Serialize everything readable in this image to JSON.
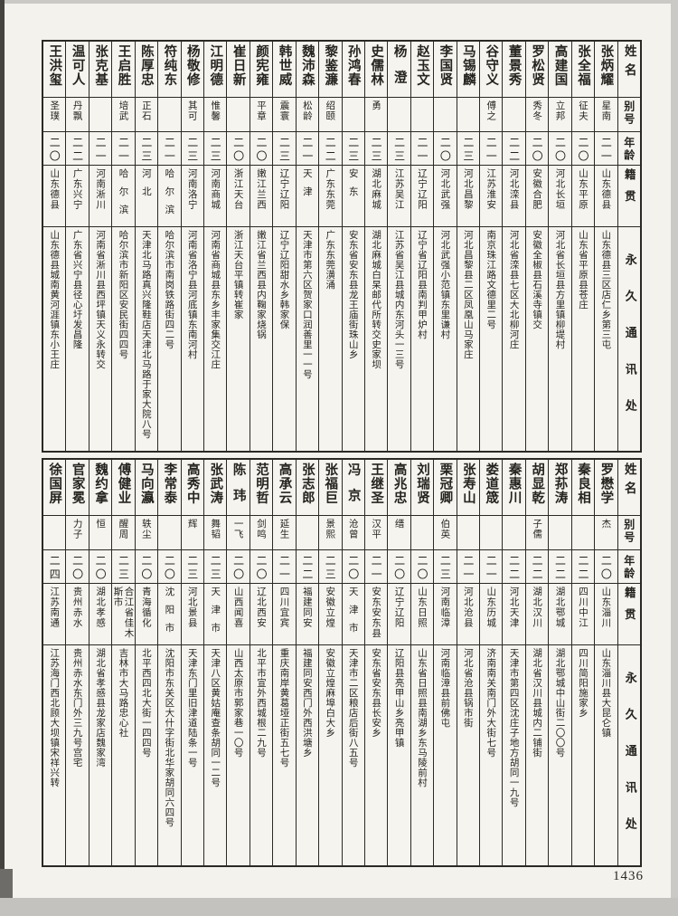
{
  "page": {
    "page_number": "1436",
    "paper_color": "#f4f2ec",
    "ink_color": "#262420"
  },
  "headers": {
    "name": "姓名",
    "alias": "别号",
    "age": "年龄",
    "native": "籍贯",
    "address": "永久通讯处"
  },
  "tables": [
    {
      "entries": [
        {
          "name": "张炳耀",
          "alias": "星南",
          "age": "二一",
          "native": "山东德县",
          "address": "山东德县三区店仁乡第三屯"
        },
        {
          "name": "张全福",
          "alias": "征夫",
          "age": "二〇",
          "native": "山东平原",
          "address": "山东省平原县苍庄"
        },
        {
          "name": "高建国",
          "alias": "立邦",
          "age": "二〇",
          "native": "河北长垣",
          "address": "河北省长垣县方里镇柳堤村"
        },
        {
          "name": "罗松贤",
          "alias": "秀冬",
          "age": "二〇",
          "native": "安徽合肥",
          "address": "安徽全椒县石溪寺镇交"
        },
        {
          "name": "董景秀",
          "alias": "",
          "age": "二二",
          "native": "河北滦县",
          "address": "河北省滦县七区大北柳河庄"
        },
        {
          "name": "谷守义",
          "alias": "傅之",
          "age": "二一",
          "native": "江苏淮安",
          "address": "南京珠江路文德里二号"
        },
        {
          "name": "马锡麟",
          "alias": "",
          "age": "二三",
          "native": "河北昌黎",
          "address": "河北昌黎县二区凤凰山马家庄"
        },
        {
          "name": "李国贤",
          "alias": "",
          "age": "二〇",
          "native": "河北武强",
          "address": "河北武强小范镇东里谦村"
        },
        {
          "name": "赵玉文",
          "alias": "",
          "age": "二一",
          "native": "辽宁辽阳",
          "address": "辽宁省辽阳县南判甲炉村"
        },
        {
          "name": "杨澄",
          "alias": "",
          "age": "二三",
          "native": "江苏吴江",
          "address": "江苏省吴江县城内东河头一三号"
        },
        {
          "name": "史儒林",
          "alias": "勇",
          "age": "二三",
          "native": "湖北麻城",
          "address": "湖北麻城白杲邮代所转交史家坝"
        },
        {
          "name": "孙鸿春",
          "alias": "",
          "age": "二三",
          "native": "安东",
          "address": "安东省安东县龙王庙街珠山乡"
        },
        {
          "name": "黎鉴濂",
          "alias": "绍颐",
          "age": "二二",
          "native": "广东东莞",
          "address": "广东东莞潢涌"
        },
        {
          "name": "魏沛森",
          "alias": "松龄",
          "age": "二一",
          "native": "天津",
          "address": "天津市第六区贺家口润善里一一号"
        },
        {
          "name": "韩世威",
          "alias": "震寰",
          "age": "二三",
          "native": "辽宁辽阳",
          "address": "辽宁辽阳甜水乡韩家保"
        },
        {
          "name": "颜宪雍",
          "alias": "平章",
          "age": "二〇",
          "native": "嫩江兰西",
          "address": "嫩江省兰西县内鞠家烧锅"
        },
        {
          "name": "崔日新",
          "alias": "",
          "age": "二〇",
          "native": "浙江天台",
          "address": "浙江天台平镇转崔家"
        },
        {
          "name": "江明德",
          "alias": "惟馨",
          "age": "二三",
          "native": "河南商城",
          "address": "河南省商城县东乡丰家集交江庄"
        },
        {
          "name": "杨敬修",
          "alias": "其可",
          "age": "二三",
          "native": "河南洛宁",
          "address": "河南省洛宁县河底镇东南河村"
        },
        {
          "name": "符纯东",
          "alias": "",
          "age": "二一",
          "native": "哈尔滨",
          "address": "哈尔滨市南岗铁路街四二号"
        },
        {
          "name": "陈厚忠",
          "alias": "正石",
          "age": "二三",
          "native": "河北",
          "address": "天津北马路真兴隆鞋店天津北马路于家大院八号"
        },
        {
          "name": "王启胜",
          "alias": "培武",
          "age": "二一",
          "native": "哈尔滨",
          "address": "哈尔滨市新阳区安民街四四号"
        },
        {
          "name": "张克基",
          "alias": "",
          "age": "二一",
          "native": "河南淅川",
          "address": "河南省淅川县西坪镇天义永转交"
        },
        {
          "name": "温可人",
          "alias": "丹飘",
          "age": "二二",
          "native": "广东兴宁",
          "address": "广东省兴宁县径心圩发昌隆"
        },
        {
          "name": "王洪玺",
          "alias": "圣璞",
          "age": "二〇",
          "native": "山东德县",
          "address": "山东德县城南黄河涯镇东小王庄"
        }
      ]
    },
    {
      "entries": [
        {
          "name": "罗懋学",
          "alias": "杰",
          "age": "二〇",
          "native": "山东淄川",
          "address": "山东淄川县大昆仑镇"
        },
        {
          "name": "秦良相",
          "alias": "",
          "age": "二二",
          "native": "四川中江",
          "address": "四川简阳施家乡"
        },
        {
          "name": "郑荪涛",
          "alias": "",
          "age": "二二",
          "native": "湖北鄂城",
          "address": "湖北鄂城中山街二〇〇号"
        },
        {
          "name": "胡显乾",
          "alias": "子儒",
          "age": "二二",
          "native": "湖北汉川",
          "address": "湖北省汉川县城内二铺街"
        },
        {
          "name": "秦惠川",
          "alias": "",
          "age": "二二",
          "native": "河北天津",
          "address": "天津市第四区沈庄子地方胡同一九号"
        },
        {
          "name": "娄道筬",
          "alias": "",
          "age": "二一",
          "native": "山东历城",
          "address": "济南南关南门外大街七号"
        },
        {
          "name": "张寿山",
          "alias": "",
          "age": "二一",
          "native": "河北沧县",
          "address": "河北省沧县锅市街"
        },
        {
          "name": "栗冠卿",
          "alias": "伯英",
          "age": "二三",
          "native": "河南临漳",
          "address": "河南临漳县前佛屯"
        },
        {
          "name": "刘瑞贤",
          "alias": "",
          "age": "二〇",
          "native": "山东日照",
          "address": "山东省日照县南湖乡东马陵前村"
        },
        {
          "name": "高兆忠",
          "alias": "缙",
          "age": "二〇",
          "native": "辽宁辽阳",
          "address": "辽阳县亮甲山乡亮甲镇"
        },
        {
          "name": "王继圣",
          "alias": "汉平",
          "age": "二一",
          "native": "安东安东县",
          "address": "安东省安东县长安乡"
        },
        {
          "name": "冯京",
          "alias": "沧曾",
          "age": "二〇",
          "native": "天津市",
          "address": "天津市二区粮店后街八五号"
        },
        {
          "name": "张福巨",
          "alias": "景熙",
          "age": "二三",
          "native": "安徽立煌",
          "address": "安徽立煌麻埠白大乡"
        },
        {
          "name": "张志郎",
          "alias": "",
          "age": "二二",
          "native": "福建同安",
          "address": "福建同安西门外西洪塘乡"
        },
        {
          "name": "高承云",
          "alias": "延生",
          "age": "二一",
          "native": "四川宜宾",
          "address": "重庆南岸黄葛垭正街五七号"
        },
        {
          "name": "范明哲",
          "alias": "剑鸣",
          "age": "二〇",
          "native": "辽北西安",
          "address": "北平市宣外西城根二九号"
        },
        {
          "name": "陈玮",
          "alias": "一飞",
          "age": "二〇",
          "native": "山西闻喜",
          "address": "山西太原市郭家巷一〇号"
        },
        {
          "name": "张武涛",
          "alias": "舞韬",
          "age": "二三",
          "native": "天津市",
          "address": "天津八区黄姑庵查条胡同一二号"
        },
        {
          "name": "高秀中",
          "alias": "辉",
          "age": "二三",
          "native": "河北景县",
          "address": "天津东门里旧津道陆条一号"
        },
        {
          "name": "李常泰",
          "alias": "",
          "age": "二〇",
          "native": "沈阳市",
          "address": "沈阳市东关区大什字街北华家胡同六四号"
        },
        {
          "name": "马向瀛",
          "alias": "轶尘",
          "age": "二〇",
          "native": "青海循化",
          "address": "北平西四北大街一四四号"
        },
        {
          "name": "傅健业",
          "alias": "醒周",
          "age": "二三",
          "native": "合江省佳木斯市",
          "address": "吉林市大马路忠心社"
        },
        {
          "name": "魏约拿",
          "alias": "恒",
          "age": "二〇",
          "native": "湖北孝感",
          "address": "湖北省孝感县龙家店魏家湾"
        },
        {
          "name": "官家冕",
          "alias": "力子",
          "age": "二〇",
          "native": "贵州赤水",
          "address": "贵州赤水东门外三九号宫宅"
        },
        {
          "name": "徐国屏",
          "alias": "",
          "age": "二四",
          "native": "江苏南通",
          "address": "江苏海门西北顾大坝镇宋祥兴转"
        }
      ]
    }
  ]
}
